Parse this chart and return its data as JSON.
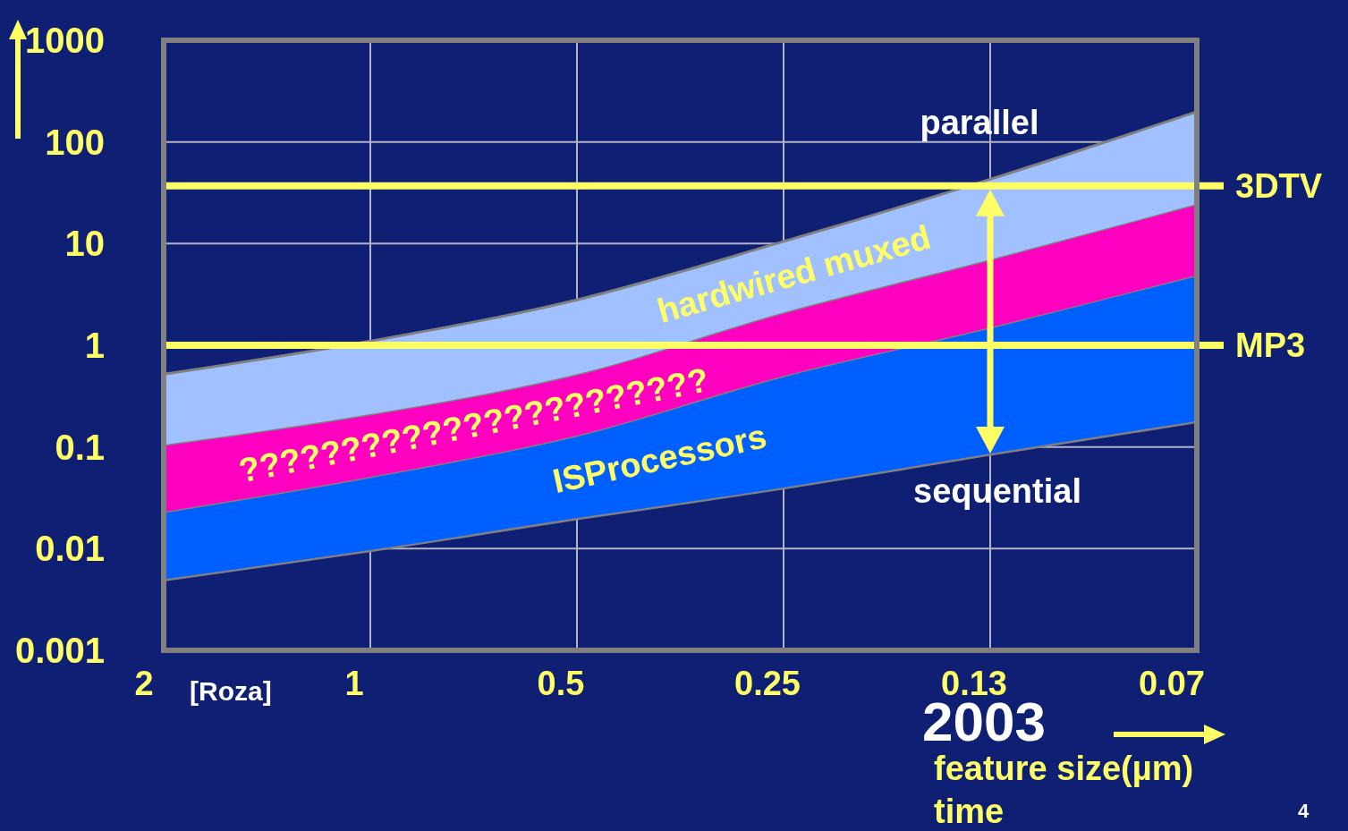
{
  "chart_data": {
    "type": "area",
    "categories": [
      "2",
      "1",
      "0.5",
      "0.25",
      "0.13",
      "0.07"
    ],
    "xlabel": "feature size(µm)",
    "log": "y",
    "ylim": [
      0.001,
      1000
    ],
    "yticks": [
      0.001,
      0.01,
      0.1,
      1,
      10,
      100,
      1000
    ],
    "grid": true,
    "series": [
      {
        "type": "line",
        "color": "#808080",
        "values": [
          0.005,
          0.0097,
          0.02,
          0.04,
          0.086,
          0.18
        ]
      },
      {
        "name": "ISProcessors",
        "color": "#0060ff",
        "values": [
          0.023,
          0.051,
          0.13,
          0.5,
          1.5,
          4.9
        ]
      },
      {
        "name": "???????????????????????",
        "color": "#ff00c0",
        "values": [
          0.105,
          0.21,
          0.52,
          2.1,
          7,
          24.5
        ]
      },
      {
        "name": "hardwired muxed",
        "color": "#a0c0ff",
        "values": [
          0.52,
          1.1,
          2.8,
          10.5,
          43,
          198
        ]
      }
    ],
    "ref_lines": [
      {
        "axis": "y",
        "value": 37,
        "label": "3DTV",
        "color": "#ffff66"
      },
      {
        "axis": "y",
        "value": 1,
        "label": "MP3",
        "color": "#ffff66"
      }
    ],
    "annotations": [
      "parallel",
      "sequential",
      "[Roza]",
      "2003",
      "time",
      "4"
    ]
  }
}
